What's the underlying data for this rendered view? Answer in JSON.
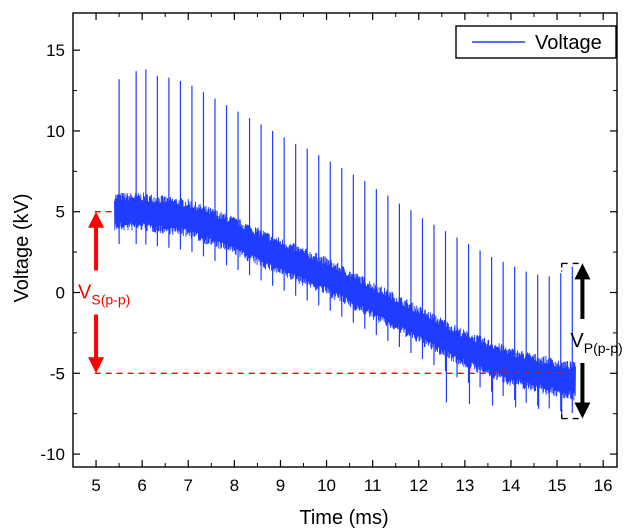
{
  "chart_data": {
    "type": "line",
    "xlabel": "Time (ms)",
    "ylabel": "Voltage (kV)",
    "xlim": [
      4.5,
      16.3
    ],
    "ylim": [
      -10.8,
      17.3
    ],
    "x_ticks": [
      5,
      6,
      7,
      8,
      9,
      10,
      11,
      12,
      13,
      14,
      15,
      16
    ],
    "y_ticks": [
      -10,
      -5,
      0,
      5,
      10,
      15
    ],
    "x_tick_labels": [
      "5",
      "6",
      "7",
      "8",
      "9",
      "10",
      "11",
      "12",
      "13",
      "14",
      "15",
      "16"
    ],
    "y_tick_labels": [
      "-10",
      "-5",
      "0",
      "5",
      "10",
      "15"
    ],
    "grid": false,
    "legend_position": "top-right",
    "series": [
      {
        "name": "Voltage",
        "color": "#1f3cff",
        "x_range": [
          5.4,
          15.4
        ],
        "baseline_points": [
          [
            5.4,
            5.0
          ],
          [
            6.0,
            5.0
          ],
          [
            7.0,
            4.6
          ],
          [
            8.0,
            3.5
          ],
          [
            9.0,
            2.2
          ],
          [
            10.0,
            1.0
          ],
          [
            11.0,
            -0.5
          ],
          [
            12.0,
            -2.0
          ],
          [
            13.0,
            -3.5
          ],
          [
            14.0,
            -4.6
          ],
          [
            15.0,
            -5.3
          ],
          [
            15.4,
            -5.5
          ]
        ],
        "band_half_width": 1.2,
        "spike_peaks": [
          [
            5.5,
            13.2
          ],
          [
            5.87,
            13.7
          ],
          [
            6.08,
            13.8
          ],
          [
            6.33,
            13.4
          ],
          [
            6.58,
            13.3
          ],
          [
            6.83,
            13.1
          ],
          [
            7.08,
            12.8
          ],
          [
            7.33,
            12.4
          ],
          [
            7.58,
            12.0
          ],
          [
            7.83,
            11.6
          ],
          [
            8.08,
            11.2
          ],
          [
            8.33,
            10.8
          ],
          [
            8.58,
            10.4
          ],
          [
            8.83,
            10.0
          ],
          [
            9.08,
            9.6
          ],
          [
            9.33,
            9.2
          ],
          [
            9.58,
            8.9
          ],
          [
            9.83,
            8.5
          ],
          [
            10.08,
            8.1
          ],
          [
            10.33,
            7.7
          ],
          [
            10.58,
            7.3
          ],
          [
            10.83,
            6.9
          ],
          [
            11.08,
            6.4
          ],
          [
            11.33,
            6.0
          ],
          [
            11.58,
            5.5
          ],
          [
            11.83,
            5.1
          ],
          [
            12.08,
            4.6
          ],
          [
            12.33,
            4.2
          ],
          [
            12.58,
            3.8
          ],
          [
            12.83,
            3.4
          ],
          [
            13.08,
            3.0
          ],
          [
            13.33,
            2.6
          ],
          [
            13.58,
            2.2
          ],
          [
            13.83,
            1.9
          ],
          [
            14.08,
            1.6
          ],
          [
            14.33,
            1.3
          ],
          [
            14.58,
            1.1
          ],
          [
            14.83,
            1.0
          ],
          [
            15.08,
            1.2
          ],
          [
            15.33,
            1.6
          ]
        ],
        "spike_troughs": [
          [
            12.6,
            -6.8
          ],
          [
            13.1,
            -6.9
          ],
          [
            13.6,
            -7.0
          ],
          [
            14.1,
            -7.1
          ],
          [
            14.6,
            -7.2
          ],
          [
            15.1,
            -7.8
          ]
        ]
      }
    ],
    "annotations": [
      {
        "label_main": "V",
        "label_sub": "S(p-p)",
        "color": "#ff0000",
        "x": 5.0,
        "y_top": 5.0,
        "y_bottom": -5.0,
        "dashed_top": [
          4.97,
          5.47
        ],
        "dashed_bottom": [
          4.97,
          15.1
        ]
      },
      {
        "label_main": "V",
        "label_sub": "P(p-p)",
        "color": "#000000",
        "x": 15.55,
        "y_top": 1.8,
        "y_bottom": -7.8,
        "dashed_top": [
          15.1,
          15.58
        ],
        "dashed_bottom": [
          15.1,
          15.58
        ]
      }
    ]
  }
}
